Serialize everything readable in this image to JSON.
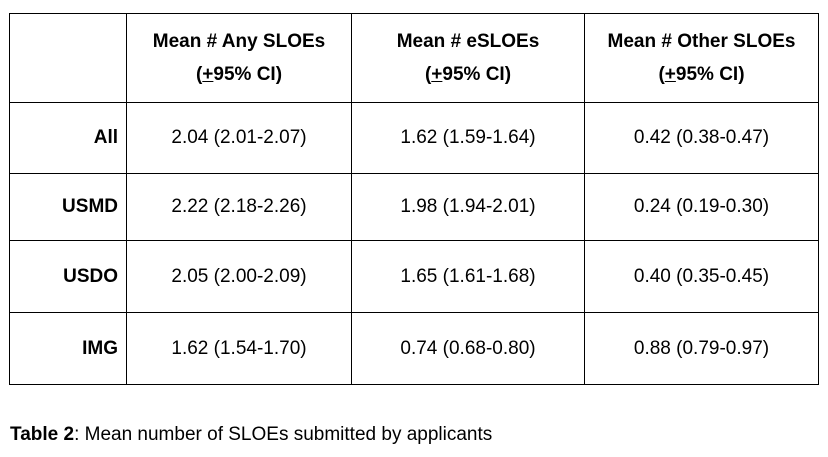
{
  "table": {
    "corner": "",
    "headers": [
      {
        "title": "Mean # Any SLOEs",
        "ci_pm": "+",
        "ci_rest": "95% CI)",
        "ci_open": "("
      },
      {
        "title": "Mean # eSLOEs",
        "ci_pm": "+",
        "ci_rest": "95% CI)",
        "ci_open": "("
      },
      {
        "title": "Mean # Other SLOEs",
        "ci_pm": "+",
        "ci_rest": "95% CI)",
        "ci_open": "("
      }
    ],
    "rows": [
      {
        "label": "All",
        "values": [
          "2.04 (2.01-2.07)",
          "1.62 (1.59-1.64)",
          "0.42 (0.38-0.47)"
        ]
      },
      {
        "label": "USMD",
        "values": [
          "2.22 (2.18-2.26)",
          "1.98 (1.94-2.01)",
          "0.24 (0.19-0.30)"
        ]
      },
      {
        "label": "USDO",
        "values": [
          "2.05 (2.00-2.09)",
          "1.65 (1.61-1.68)",
          "0.40 (0.35-0.45)"
        ]
      },
      {
        "label": "IMG",
        "values": [
          "1.62 (1.54-1.70)",
          "0.74 (0.68-0.80)",
          "0.88 (0.79-0.97)"
        ]
      }
    ]
  },
  "caption": {
    "label": "Table 2",
    "text": ": Mean number of SLOEs submitted by applicants"
  }
}
